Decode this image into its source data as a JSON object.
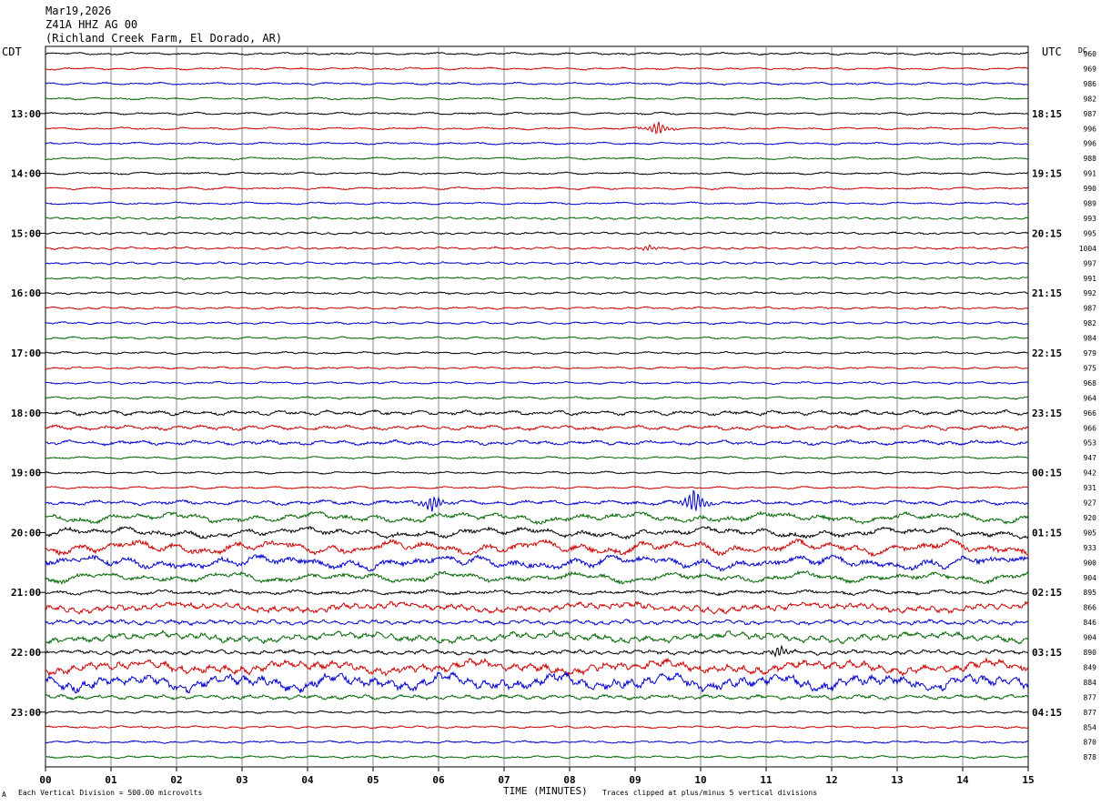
{
  "header": {
    "date": "Mar19,2026",
    "station": "Z41A HHZ AG 00",
    "location": "(Richland Creek Farm, El Dorado, AR)"
  },
  "left_tz": "CDT",
  "right_tz": "UTC",
  "dc_header": "DC",
  "footer": {
    "mark": "A",
    "scale": "Each Vertical Division =  500.00 microvolts",
    "clip": "Traces clipped at plus/minus 5 vertical divisions"
  },
  "chart_data": {
    "type": "line",
    "title": "Z41A HHZ AG 00",
    "xlabel": "TIME (MINUTES)",
    "x_ticks": [
      "00",
      "01",
      "02",
      "03",
      "04",
      "05",
      "06",
      "07",
      "08",
      "09",
      "10",
      "11",
      "12",
      "13",
      "14",
      "15"
    ],
    "xlim": [
      0,
      15
    ],
    "trace_colors": [
      "#000000",
      "#cc0000",
      "#0000cc",
      "#006600"
    ],
    "left_hour_labels": [
      "13:00",
      "14:00",
      "15:00",
      "16:00",
      "17:00",
      "18:00",
      "19:00",
      "20:00",
      "21:00",
      "22:00",
      "23:00"
    ],
    "right_hour_labels": [
      "18:15",
      "19:15",
      "20:15",
      "21:15",
      "22:15",
      "23:15",
      "00:15",
      "01:15",
      "02:15",
      "03:15",
      "04:15"
    ],
    "hour_label_first_trace": 4,
    "dc_offsets": [
      960,
      969,
      986,
      982,
      987,
      996,
      996,
      988,
      991,
      990,
      989,
      993,
      995,
      1004,
      997,
      991,
      992,
      987,
      982,
      984,
      979,
      975,
      968,
      964,
      966,
      966,
      953,
      947,
      942,
      931,
      927,
      920,
      905,
      933,
      900,
      904,
      895,
      866,
      846,
      904,
      890,
      849,
      884,
      877,
      877,
      854,
      870,
      878
    ],
    "trace_amplitude": [
      1,
      1,
      1,
      1,
      1,
      1,
      1,
      1,
      1,
      1,
      1,
      1,
      1,
      1,
      1,
      1,
      1,
      1,
      1,
      1,
      1,
      1,
      1,
      1,
      2,
      2,
      2,
      1,
      1,
      1,
      2,
      3,
      3,
      4,
      4,
      3,
      2,
      3,
      2,
      3,
      2,
      4,
      5,
      2,
      1,
      1,
      1,
      1
    ],
    "events": [
      {
        "trace": 5,
        "minute": 9.35,
        "amp": 8
      },
      {
        "trace": 13,
        "minute": 9.2,
        "amp": 3
      },
      {
        "trace": 30,
        "minute": 5.9,
        "amp": 10
      },
      {
        "trace": 30,
        "minute": 9.9,
        "amp": 14
      },
      {
        "trace": 40,
        "minute": 11.2,
        "amp": 6
      }
    ]
  }
}
